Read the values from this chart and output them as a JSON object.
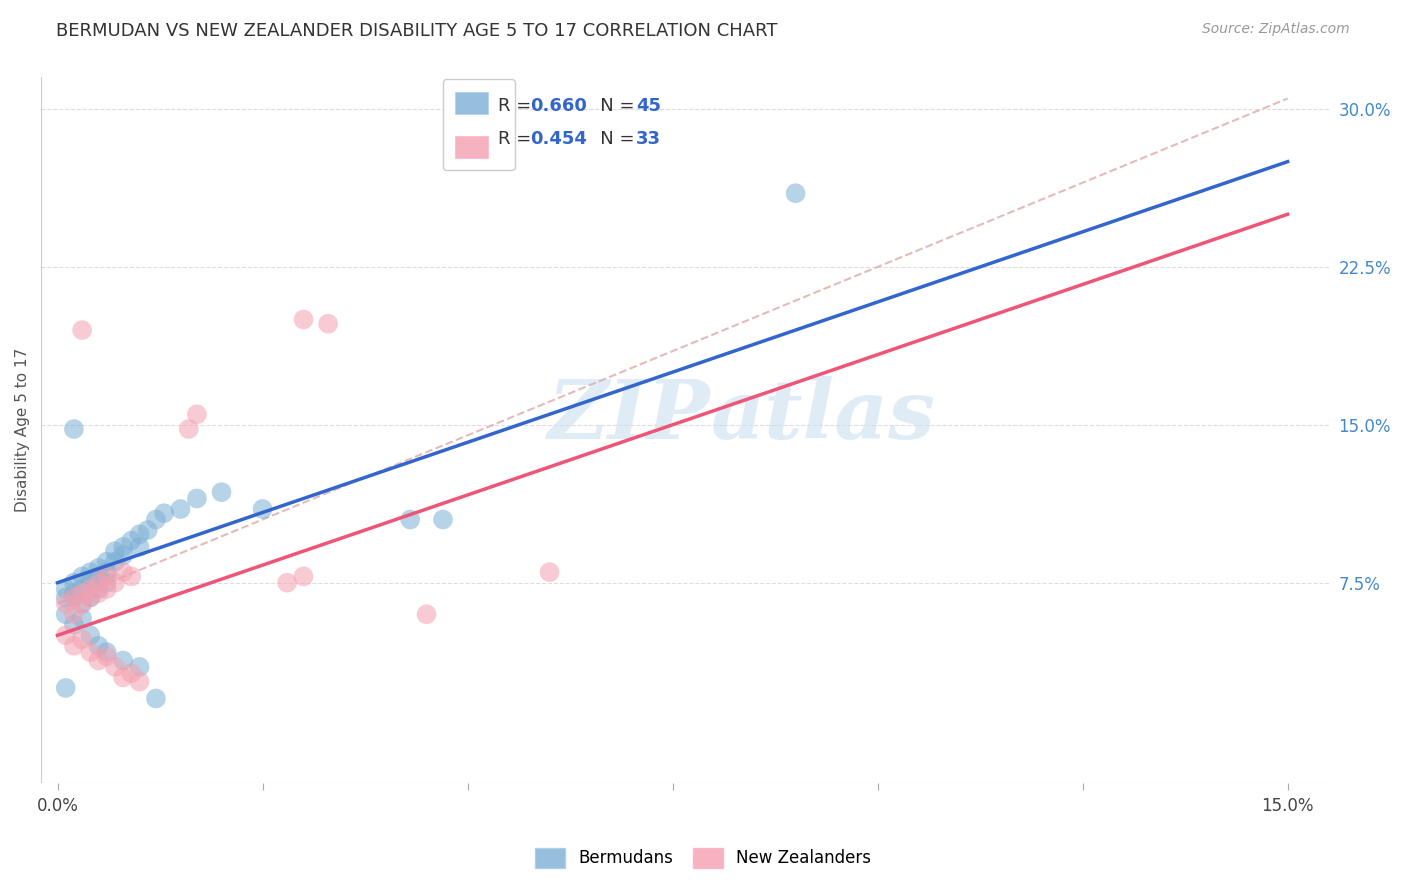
{
  "title": "BERMUDAN VS NEW ZEALANDER DISABILITY AGE 5 TO 17 CORRELATION CHART",
  "source": "Source: ZipAtlas.com",
  "ylabel": "Disability Age 5 to 17",
  "xlim": [
    -0.002,
    0.155
  ],
  "ylim": [
    -0.02,
    0.315
  ],
  "xticks": [
    0.0,
    0.025,
    0.05,
    0.075,
    0.1,
    0.125,
    0.15
  ],
  "xtick_labels": [
    "0.0%",
    "",
    "",
    "",
    "",
    "",
    "15.0%"
  ],
  "yticks_right": [
    0.075,
    0.15,
    0.225,
    0.3
  ],
  "ytick_right_labels": [
    "7.5%",
    "15.0%",
    "22.5%",
    "30.0%"
  ],
  "blue_R": 0.66,
  "blue_N": 45,
  "pink_R": 0.454,
  "pink_N": 33,
  "blue_color": "#7BAFD4",
  "pink_color": "#F4A0B0",
  "blue_scatter": [
    [
      0.001,
      0.072
    ],
    [
      0.001,
      0.068
    ],
    [
      0.002,
      0.075
    ],
    [
      0.002,
      0.07
    ],
    [
      0.002,
      0.068
    ],
    [
      0.003,
      0.078
    ],
    [
      0.003,
      0.072
    ],
    [
      0.003,
      0.065
    ],
    [
      0.004,
      0.08
    ],
    [
      0.004,
      0.075
    ],
    [
      0.004,
      0.068
    ],
    [
      0.005,
      0.082
    ],
    [
      0.005,
      0.078
    ],
    [
      0.005,
      0.072
    ],
    [
      0.006,
      0.085
    ],
    [
      0.006,
      0.08
    ],
    [
      0.006,
      0.075
    ],
    [
      0.007,
      0.09
    ],
    [
      0.007,
      0.085
    ],
    [
      0.008,
      0.092
    ],
    [
      0.008,
      0.088
    ],
    [
      0.009,
      0.095
    ],
    [
      0.01,
      0.098
    ],
    [
      0.01,
      0.092
    ],
    [
      0.011,
      0.1
    ],
    [
      0.012,
      0.105
    ],
    [
      0.013,
      0.108
    ],
    [
      0.015,
      0.11
    ],
    [
      0.017,
      0.115
    ],
    [
      0.02,
      0.118
    ],
    [
      0.001,
      0.06
    ],
    [
      0.002,
      0.055
    ],
    [
      0.003,
      0.058
    ],
    [
      0.004,
      0.05
    ],
    [
      0.005,
      0.045
    ],
    [
      0.006,
      0.042
    ],
    [
      0.008,
      0.038
    ],
    [
      0.01,
      0.035
    ],
    [
      0.002,
      0.148
    ],
    [
      0.025,
      0.11
    ],
    [
      0.043,
      0.105
    ],
    [
      0.047,
      0.105
    ],
    [
      0.001,
      0.025
    ],
    [
      0.012,
      0.02
    ],
    [
      0.09,
      0.26
    ]
  ],
  "pink_scatter": [
    [
      0.001,
      0.065
    ],
    [
      0.002,
      0.068
    ],
    [
      0.002,
      0.06
    ],
    [
      0.003,
      0.07
    ],
    [
      0.003,
      0.065
    ],
    [
      0.004,
      0.072
    ],
    [
      0.004,
      0.068
    ],
    [
      0.005,
      0.075
    ],
    [
      0.005,
      0.07
    ],
    [
      0.006,
      0.078
    ],
    [
      0.006,
      0.072
    ],
    [
      0.007,
      0.075
    ],
    [
      0.008,
      0.08
    ],
    [
      0.009,
      0.078
    ],
    [
      0.001,
      0.05
    ],
    [
      0.002,
      0.045
    ],
    [
      0.003,
      0.048
    ],
    [
      0.004,
      0.042
    ],
    [
      0.005,
      0.038
    ],
    [
      0.006,
      0.04
    ],
    [
      0.007,
      0.035
    ],
    [
      0.008,
      0.03
    ],
    [
      0.009,
      0.032
    ],
    [
      0.01,
      0.028
    ],
    [
      0.003,
      0.195
    ],
    [
      0.016,
      0.148
    ],
    [
      0.028,
      0.075
    ],
    [
      0.03,
      0.078
    ],
    [
      0.017,
      0.155
    ],
    [
      0.045,
      0.06
    ],
    [
      0.06,
      0.08
    ],
    [
      0.03,
      0.2
    ],
    [
      0.033,
      0.198
    ]
  ],
  "blue_line": [
    0.0,
    0.075,
    0.15,
    0.275
  ],
  "pink_line": [
    0.0,
    0.05,
    0.15,
    0.25
  ],
  "ref_line": [
    0.0,
    0.065,
    0.15,
    0.305
  ],
  "watermark_zip": "ZIP",
  "watermark_atlas": "atlas",
  "background_color": "#FFFFFF",
  "grid_color": "#DDDDDD",
  "title_color": "#333333",
  "source_color": "#999999",
  "ylabel_color": "#555555",
  "right_tick_color": "#4488CC",
  "legend_edge_color": "#CCCCCC"
}
